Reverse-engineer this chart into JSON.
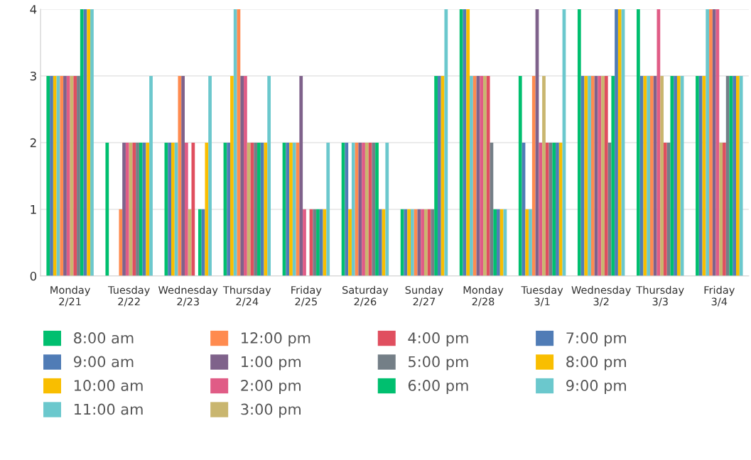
{
  "chart_data": {
    "type": "bar",
    "categories": [
      "Monday 2/21",
      "Tuesday 2/22",
      "Wednesday 2/23",
      "Thursday 2/24",
      "Friday 2/25",
      "Saturday 2/26",
      "Sunday 2/27",
      "Monday 2/28",
      "Tuesday 3/1",
      "Wednesday 3/2",
      "Thursday 3/3",
      "Friday 3/4"
    ],
    "ylim": [
      0,
      4
    ],
    "yticks": [
      0,
      1,
      2,
      3,
      4
    ],
    "grid": "y",
    "legend": "bottom",
    "series": [
      {
        "name": "8:00 am",
        "color": "#00bf6f",
        "values": [
          3,
          2,
          2,
          2,
          2,
          2,
          1,
          4,
          3,
          4,
          4,
          3
        ]
      },
      {
        "name": "9:00 am",
        "color": "#507cb6",
        "values": [
          3,
          0,
          2,
          2,
          2,
          2,
          1,
          4,
          2,
          3,
          3,
          3
        ]
      },
      {
        "name": "10:00 am",
        "color": "#f9be00",
        "values": [
          3,
          0,
          2,
          3,
          2,
          1,
          1,
          4,
          1,
          3,
          3,
          3
        ]
      },
      {
        "name": "11:00 am",
        "color": "#6bc8cd",
        "values": [
          3,
          0,
          2,
          4,
          2,
          2,
          1,
          3,
          1,
          3,
          3,
          4
        ]
      },
      {
        "name": "12:00 pm",
        "color": "#ff8b4f",
        "values": [
          3,
          1,
          3,
          4,
          2,
          2,
          1,
          3,
          3,
          3,
          3,
          4
        ]
      },
      {
        "name": "1:00 pm",
        "color": "#7f628b",
        "values": [
          3,
          2,
          3,
          3,
          3,
          2,
          1,
          3,
          4,
          3,
          3,
          4
        ]
      },
      {
        "name": "2:00 pm",
        "color": "#e05c86",
        "values": [
          3,
          2,
          2,
          3,
          1,
          2,
          1,
          3,
          2,
          3,
          4,
          4
        ]
      },
      {
        "name": "3:00 pm",
        "color": "#c9b66f",
        "values": [
          3,
          2,
          1,
          2,
          0,
          2,
          1,
          3,
          3,
          3,
          3,
          2
        ]
      },
      {
        "name": "4:00 pm",
        "color": "#e04f5f",
        "values": [
          3,
          2,
          2,
          2,
          1,
          2,
          1,
          3,
          2,
          3,
          2,
          2
        ]
      },
      {
        "name": "5:00 pm",
        "color": "#747f87",
        "values": [
          3,
          2,
          0,
          2,
          1,
          2,
          1,
          2,
          2,
          2,
          2,
          3
        ]
      },
      {
        "name": "6:00 pm",
        "color": "#00bf6f",
        "values": [
          4,
          2,
          1,
          2,
          1,
          2,
          3,
          1,
          2,
          3,
          3,
          3
        ]
      },
      {
        "name": "7:00 pm",
        "color": "#507cb6",
        "values": [
          4,
          2,
          1,
          2,
          1,
          1,
          3,
          1,
          2,
          4,
          3,
          3
        ]
      },
      {
        "name": "8:00 pm",
        "color": "#f9be00",
        "values": [
          4,
          2,
          2,
          2,
          1,
          1,
          3,
          1,
          2,
          4,
          3,
          3
        ]
      },
      {
        "name": "9:00 pm",
        "color": "#6bc8cd",
        "values": [
          4,
          3,
          3,
          3,
          2,
          2,
          4,
          1,
          4,
          4,
          3,
          3
        ]
      }
    ]
  }
}
